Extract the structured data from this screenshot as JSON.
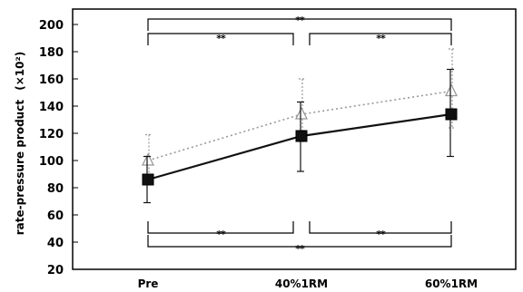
{
  "chart_data": {
    "type": "line",
    "title": "",
    "xlabel": "",
    "ylabel": "rate-pressure product",
    "ylabel_unit": "(×10²)",
    "categories": [
      "Pre",
      "40%1RM",
      "60%1RM"
    ],
    "ylim": [
      20,
      200
    ],
    "yticks": [
      20,
      40,
      60,
      80,
      100,
      120,
      140,
      160,
      180,
      200
    ],
    "grid": false,
    "legend": "none",
    "series": [
      {
        "marker": "square",
        "line_style": "solid",
        "color": "#111111",
        "values": [
          86,
          118,
          134
        ],
        "error_low": [
          69,
          92,
          103
        ],
        "error_high": [
          103,
          143,
          167
        ]
      },
      {
        "marker": "triangle",
        "line_style": "dotted",
        "color": "#999999",
        "values": [
          100,
          134,
          151
        ],
        "error_low": [
          86,
          114,
          124
        ],
        "error_high": [
          119,
          160,
          182
        ]
      }
    ],
    "significance": [
      {
        "group": "top",
        "from": 0,
        "to": 1,
        "label": "**"
      },
      {
        "group": "top",
        "from": 1,
        "to": 2,
        "label": "**"
      },
      {
        "group": "top",
        "from": 0,
        "to": 2,
        "label": "**"
      },
      {
        "group": "bottom",
        "from": 0,
        "to": 1,
        "label": "**"
      },
      {
        "group": "bottom",
        "from": 1,
        "to": 2,
        "label": "**"
      },
      {
        "group": "bottom",
        "from": 0,
        "to": 2,
        "label": "**"
      }
    ]
  }
}
